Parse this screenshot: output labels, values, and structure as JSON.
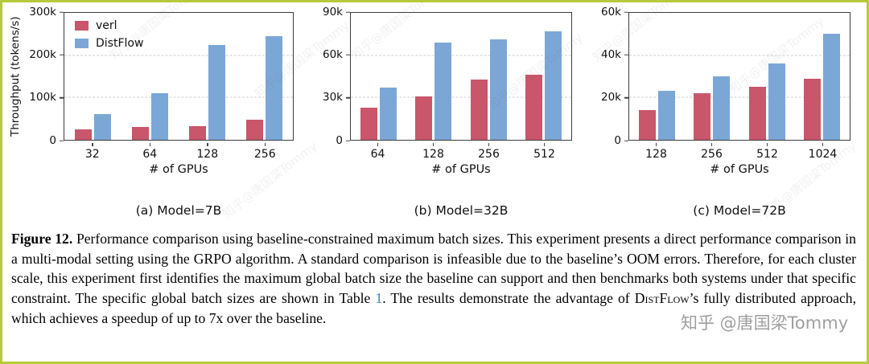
{
  "figure": {
    "border_color": "#b6ca3a"
  },
  "colors": {
    "verl": "#c9566b",
    "distflow": "#7ba7d6",
    "grid": "#cfcfcf",
    "axis": "#3c3c3c",
    "link": "#3c7fb1"
  },
  "chart_data": [
    {
      "type": "bar",
      "title": "(a) Model=7B",
      "xlabel": "# of GPUs",
      "ylabel": "Throughput (tokens/s)",
      "categories": [
        "32",
        "64",
        "128",
        "256"
      ],
      "series": [
        {
          "name": "verl",
          "values": [
            25000,
            30000,
            33000,
            47000
          ]
        },
        {
          "name": "DistFlow",
          "values": [
            60000,
            110000,
            225000,
            245000
          ]
        }
      ],
      "ylim": [
        0,
        300000
      ],
      "yticks": [
        {
          "value": 0,
          "label": "0"
        },
        {
          "value": 100000,
          "label": "100k"
        },
        {
          "value": 200000,
          "label": "200k"
        },
        {
          "value": 300000,
          "label": "300k"
        }
      ],
      "grid": "dashed-horizontal",
      "legend": "upper-left"
    },
    {
      "type": "bar",
      "title": "(b) Model=32B",
      "xlabel": "# of GPUs",
      "ylabel": "",
      "categories": [
        "64",
        "128",
        "256",
        "512"
      ],
      "series": [
        {
          "name": "verl",
          "values": [
            23000,
            31000,
            43000,
            46000
          ]
        },
        {
          "name": "DistFlow",
          "values": [
            37000,
            69000,
            71000,
            77000
          ]
        }
      ],
      "ylim": [
        0,
        90000
      ],
      "yticks": [
        {
          "value": 0,
          "label": "0"
        },
        {
          "value": 30000,
          "label": "30k"
        },
        {
          "value": 60000,
          "label": "60k"
        },
        {
          "value": 90000,
          "label": "90k"
        }
      ],
      "grid": "dashed-horizontal",
      "legend": "none"
    },
    {
      "type": "bar",
      "title": "(c) Model=72B",
      "xlabel": "# of GPUs",
      "ylabel": "",
      "categories": [
        "128",
        "256",
        "512",
        "1024"
      ],
      "series": [
        {
          "name": "verl",
          "values": [
            14000,
            22000,
            25000,
            29000
          ]
        },
        {
          "name": "DistFlow",
          "values": [
            23000,
            30000,
            36000,
            50000
          ]
        }
      ],
      "ylim": [
        0,
        60000
      ],
      "yticks": [
        {
          "value": 0,
          "label": "0"
        },
        {
          "value": 20000,
          "label": "20k"
        },
        {
          "value": 40000,
          "label": "40k"
        },
        {
          "value": 60000,
          "label": "60k"
        }
      ],
      "grid": "dashed-horizontal",
      "legend": "none"
    }
  ],
  "caption": {
    "label": "Figure 12.",
    "text1": " Performance comparison using baseline-constrained maximum batch sizes. This experiment presents a direct performance comparison in a multi-modal setting using the GRPO algorithm. A standard comparison is infeasible due to the baseline’s OOM errors. Therefore, for each cluster scale, this experiment first identifies the maximum global batch size the baseline can support and then benchmarks both systems under that specific constraint. The specific global batch sizes are shown in Table ",
    "table_link": "1",
    "text2": ". The results demonstrate the advantage of ",
    "distflow_name": "DistFlow",
    "text3": "’s fully distributed approach, which achieves a speedup of up to 7x over the baseline."
  },
  "watermark": {
    "badge": "知乎 @唐国梁Tommy",
    "diagonal": "知乎@唐国梁Tommy"
  }
}
